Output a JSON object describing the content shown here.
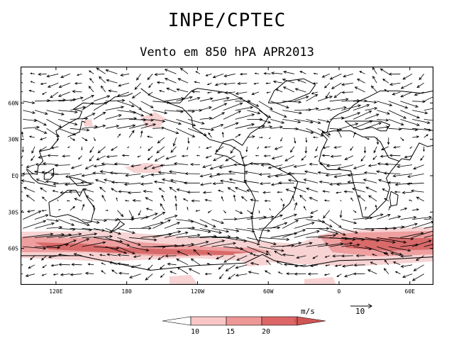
{
  "header": {
    "org": "INPE/CPTEC",
    "subtitle": "Vento em 850 hPA APR2013"
  },
  "map": {
    "lat_labels": [
      "60N",
      "30N",
      "EQ",
      "30S",
      "60S"
    ],
    "lat_values": [
      60,
      30,
      0,
      -30,
      -60
    ],
    "lon_labels": [
      "120E",
      "180",
      "120W",
      "60W",
      "0",
      "60E"
    ],
    "lon_values": [
      120,
      180,
      240,
      300,
      360,
      420
    ],
    "lon_range": [
      90,
      440
    ],
    "lat_range": [
      -90,
      90
    ],
    "wind_units": "m/s",
    "ref_vector_value": "10",
    "shading_colors": [
      "#f7d3d3",
      "#ee9f9f",
      "#d86a6a"
    ]
  },
  "legend": {
    "ticks": [
      "10",
      "15",
      "20"
    ],
    "colors": [
      "#ffffff",
      "#f9c6c6",
      "#ee9797",
      "#dd6666",
      "#d05555"
    ]
  }
}
